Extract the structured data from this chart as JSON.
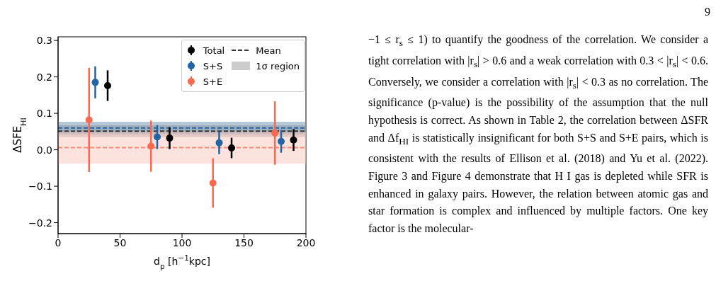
{
  "chart_data": {
    "type": "scatter",
    "xlabel": "d$_{p}$ [h$^{−1}$kpc]",
    "ylabel": "ΔSFE$_{HI}$",
    "xlim": [
      0,
      200
    ],
    "xticks": [
      0,
      50,
      100,
      150,
      200
    ],
    "ylim": [
      -0.23,
      0.31
    ],
    "yticks": [
      {
        "value": -0.2,
        "label": "−0.2"
      },
      {
        "value": -0.1,
        "label": "−0.1"
      },
      {
        "value": 0,
        "label": "0.0"
      },
      0.1,
      0.2,
      0.3
    ],
    "series": [
      {
        "name": "Total",
        "color": "#000000",
        "x": [
          40,
          90,
          140,
          190
        ],
        "values": [
          0.176,
          0.032,
          0.005,
          0.027
        ],
        "errors": [
          0.042,
          0.03,
          0.028,
          0.03
        ]
      },
      {
        "name": "S+S",
        "color": "#2364a4",
        "x": [
          30,
          80,
          130,
          180
        ],
        "values": [
          0.185,
          0.035,
          0.019,
          0.023
        ],
        "errors": [
          0.044,
          0.033,
          0.031,
          0.031
        ]
      },
      {
        "name": "S+E",
        "color": "#fa6a50",
        "x": [
          25,
          75,
          125,
          175
        ],
        "values": [
          0.082,
          0.01,
          -0.091,
          0.046
        ],
        "errors": [
          0.143,
          0.07,
          0.068,
          0.087
        ]
      }
    ],
    "ref_lines": [
      {
        "axis": "y",
        "value": 0.051,
        "label": "Mean",
        "color": "#333333",
        "line_style": "dashed"
      },
      {
        "axis": "y",
        "value": 0.06,
        "color": "#2364a4",
        "line_style": "dashed"
      },
      {
        "axis": "y",
        "value": 0.006,
        "color": "#fa8a78",
        "line_style": "dashed"
      }
    ],
    "bands": [
      {
        "axis": "y",
        "from": 0.035,
        "to": 0.067,
        "label": "1σ region",
        "color": "#9a9a9a"
      },
      {
        "axis": "y",
        "from": 0.043,
        "to": 0.077,
        "color": "#6f8fae"
      },
      {
        "axis": "y",
        "from": -0.038,
        "to": 0.05,
        "color": "#fcc8be"
      }
    ],
    "marker": "circle",
    "legend": "top right",
    "annotations": [
      "9",
      "−1 ≤ r$_{s}$ ≤ 1) to quantify the goodness of the correlation. We consider a tight correlation with |r$_{s}$| > 0.6 and a weak correlation with 0.3 < |r$_{s}$| < 0.6. Conversely, we consider a correlation with |r$_{s}$| < 0.3 as no correlation. The significance (p-value) is the possibility of the assumption that the null hypothesis is correct. As shown in Table 2, the correlation between ΔSFR and Δf$_{HI}$ is statistically insignificant for both S+S and S+E pairs, which is consistent with the results of Ellison et al. (2018) and Yu et al. (2022). Figure 3 and Figure 4 demonstrate that H I gas is depleted while SFR is enhanced in galaxy pairs. However, the relation between atomic gas and star formation is complex and influenced by multiple factors. One key factor is the molecular-"
    ]
  }
}
